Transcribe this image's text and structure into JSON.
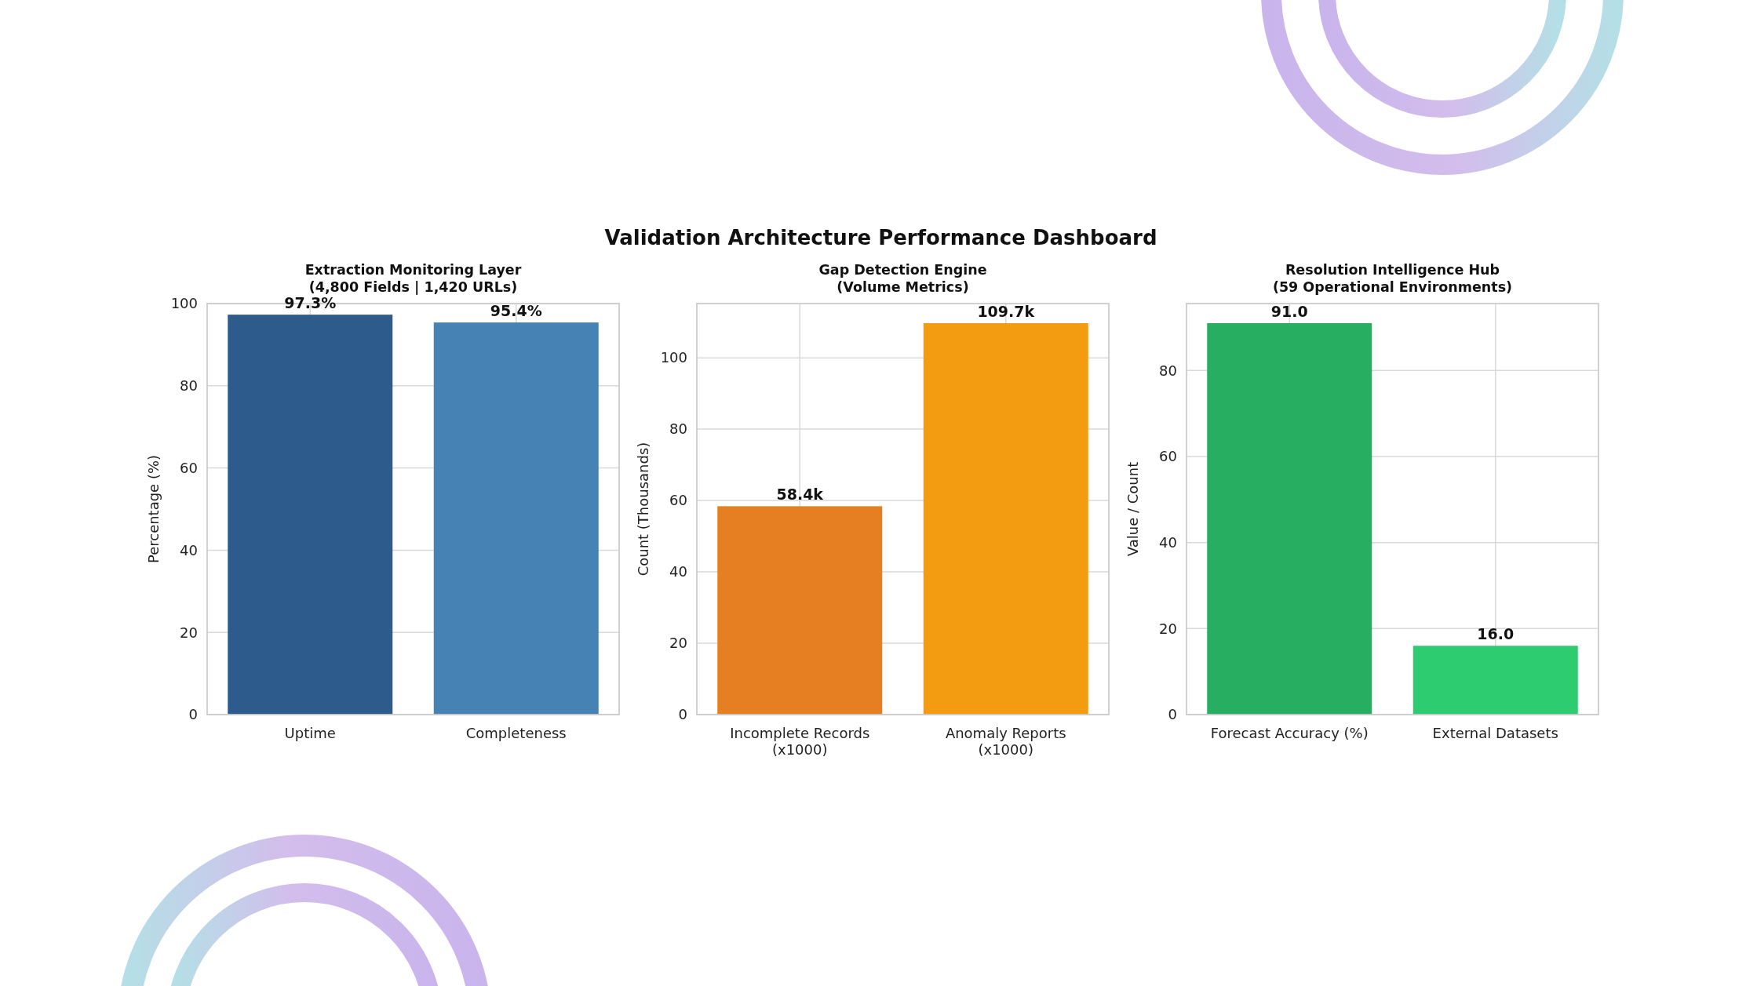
{
  "chart_data": [
    {
      "type": "other",
      "title": "Validation Architecture Performance Dashboard"
    },
    {
      "type": "bar",
      "title": "Extraction Monitoring Layer\n(4,800 Fields | 1,420 URLs)",
      "ylabel": "Percentage (%)",
      "categories": [
        "Uptime",
        "Completeness"
      ],
      "values": [
        97.3,
        95.4
      ],
      "colors": [
        "#2c5b8c",
        "#4682b4"
      ],
      "value_labels": [
        "97.3%",
        "95.4%"
      ],
      "ylim": [
        0,
        100
      ],
      "yticks": [
        0,
        20,
        40,
        60,
        80,
        100
      ],
      "grid": true
    },
    {
      "type": "bar",
      "title": "Gap Detection Engine\n(Volume Metrics)",
      "ylabel": "Count (Thousands)",
      "categories": [
        "Incomplete Records\n(x1000)",
        "Anomaly Reports\n(x1000)"
      ],
      "values": [
        58.4,
        109.7
      ],
      "colors": [
        "#e67e22",
        "#f39c12"
      ],
      "value_labels": [
        "58.4k",
        "109.7k"
      ],
      "ylim": [
        0,
        115.2
      ],
      "yticks": [
        0,
        20,
        40,
        60,
        80,
        100
      ],
      "grid": true
    },
    {
      "type": "bar",
      "title": "Resolution Intelligence Hub\n(59 Operational Environments)",
      "ylabel": "Value / Count",
      "categories": [
        "Forecast Accuracy (%)",
        "External Datasets"
      ],
      "values": [
        91.0,
        16.0
      ],
      "colors": [
        "#27ae60",
        "#2ecc71"
      ],
      "value_labels": [
        "91.0",
        "16.0"
      ],
      "ylim": [
        0,
        95.55
      ],
      "yticks": [
        0,
        20,
        40,
        60,
        80
      ],
      "grid": true
    }
  ]
}
